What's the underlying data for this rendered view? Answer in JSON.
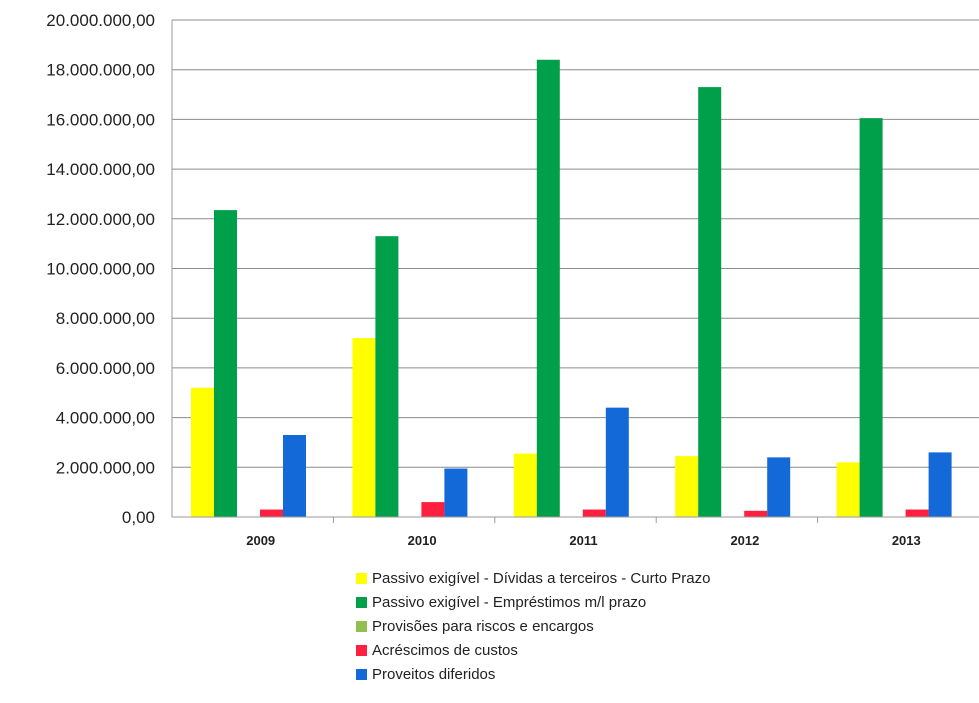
{
  "chart_data": {
    "type": "bar",
    "categories": [
      "2009",
      "2010",
      "2011",
      "2012",
      "2013"
    ],
    "series": [
      {
        "name": "Passivo exigível - Dívidas a terceiros - Curto Prazo",
        "color": "#ffff00",
        "values": [
          5200000,
          7200000,
          2550000,
          2450000,
          2200000
        ]
      },
      {
        "name": "Passivo exigível - Empréstimos m/l prazo",
        "color": "#00a04a",
        "values": [
          12350000,
          11300000,
          18400000,
          17300000,
          16050000
        ]
      },
      {
        "name": "Provisões para riscos e encargos",
        "color": "#92c050",
        "values": [
          0,
          0,
          0,
          0,
          0
        ]
      },
      {
        "name": "Acréscimos de custos",
        "color": "#ff1f3f",
        "values": [
          300000,
          600000,
          300000,
          250000,
          300000
        ]
      },
      {
        "name": "Proveitos diferidos",
        "color": "#1469d9",
        "values": [
          3300000,
          1950000,
          4400000,
          2400000,
          2600000
        ]
      }
    ],
    "yticks": [
      "0,00",
      "2.000.000,00",
      "4.000.000,00",
      "6.000.000,00",
      "8.000.000,00",
      "10.000.000,00",
      "12.000.000,00",
      "14.000.000,00",
      "16.000.000,00",
      "18.000.000,00",
      "20.000.000,00"
    ],
    "ylim": [
      0,
      20000000
    ],
    "grid": true,
    "legend_position": "bottom"
  }
}
